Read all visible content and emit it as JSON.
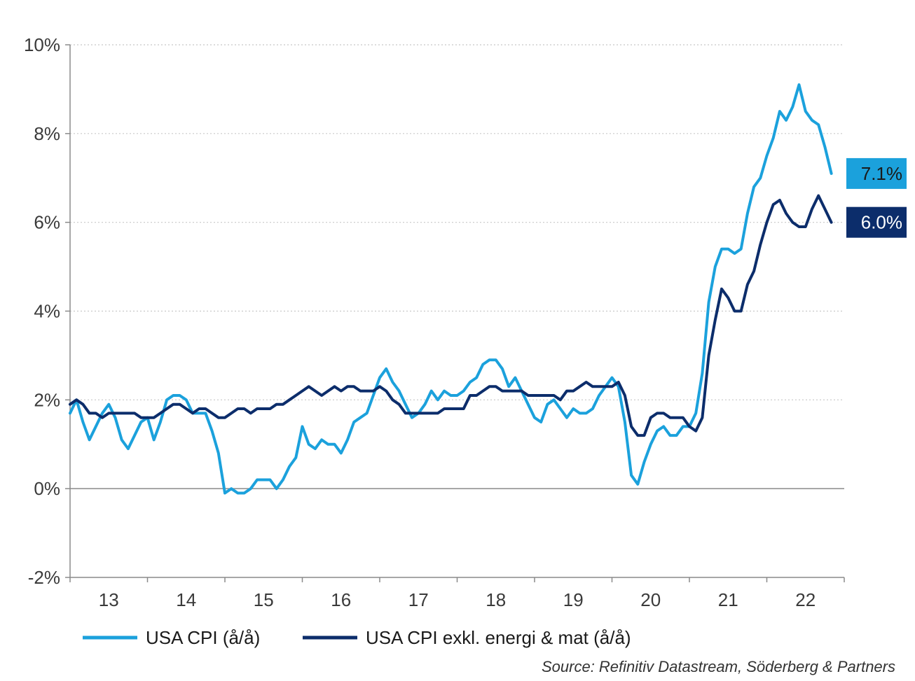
{
  "chart_data": {
    "type": "line",
    "title": "",
    "xlabel": "",
    "ylabel": "",
    "ylim": [
      -2,
      10
    ],
    "yticks": [
      -2,
      0,
      2,
      4,
      6,
      8,
      10
    ],
    "ytick_labels": [
      "-2%",
      "0%",
      "2%",
      "4%",
      "6%",
      "8%",
      "10%"
    ],
    "x_start_year": 2012.5,
    "x_end_year": 2022.5,
    "xtick_labels": [
      "13",
      "14",
      "15",
      "16",
      "17",
      "18",
      "19",
      "20",
      "21",
      "22"
    ],
    "grid": "horizontal dotted",
    "legend_position": "bottom",
    "series": [
      {
        "name": "USA CPI (å/å)",
        "color": "#1ba1dc",
        "end_label": "7.1%",
        "x_start": "2012-07",
        "values": [
          1.7,
          2.0,
          1.5,
          1.1,
          1.4,
          1.7,
          1.9,
          1.6,
          1.1,
          0.9,
          1.2,
          1.5,
          1.6,
          1.1,
          1.5,
          2.0,
          2.1,
          2.1,
          2.0,
          1.7,
          1.7,
          1.7,
          1.3,
          0.8,
          -0.1,
          0.0,
          -0.1,
          -0.1,
          0.0,
          0.2,
          0.2,
          0.2,
          0.0,
          0.2,
          0.5,
          0.7,
          1.4,
          1.0,
          0.9,
          1.1,
          1.0,
          1.0,
          0.8,
          1.1,
          1.5,
          1.6,
          1.7,
          2.1,
          2.5,
          2.7,
          2.4,
          2.2,
          1.9,
          1.6,
          1.7,
          1.9,
          2.2,
          2.0,
          2.2,
          2.1,
          2.1,
          2.2,
          2.4,
          2.5,
          2.8,
          2.9,
          2.9,
          2.7,
          2.3,
          2.5,
          2.2,
          1.9,
          1.6,
          1.5,
          1.9,
          2.0,
          1.8,
          1.6,
          1.8,
          1.7,
          1.7,
          1.8,
          2.1,
          2.3,
          2.5,
          2.3,
          1.5,
          0.3,
          0.1,
          0.6,
          1.0,
          1.3,
          1.4,
          1.2,
          1.2,
          1.4,
          1.4,
          1.7,
          2.6,
          4.2,
          5.0,
          5.4,
          5.4,
          5.3,
          5.4,
          6.2,
          6.8,
          7.0,
          7.5,
          7.9,
          8.5,
          8.3,
          8.6,
          9.1,
          8.5,
          8.3,
          8.2,
          7.7,
          7.1
        ]
      },
      {
        "name": "USA CPI exkl. energi & mat (å/å)",
        "color": "#0c2d6b",
        "end_label": "6.0%",
        "x_start": "2012-07",
        "values": [
          1.9,
          2.0,
          1.9,
          1.7,
          1.7,
          1.6,
          1.7,
          1.7,
          1.7,
          1.7,
          1.7,
          1.6,
          1.6,
          1.6,
          1.7,
          1.8,
          1.9,
          1.9,
          1.8,
          1.7,
          1.8,
          1.8,
          1.7,
          1.6,
          1.6,
          1.7,
          1.8,
          1.8,
          1.7,
          1.8,
          1.8,
          1.8,
          1.9,
          1.9,
          2.0,
          2.1,
          2.2,
          2.3,
          2.2,
          2.1,
          2.2,
          2.3,
          2.2,
          2.3,
          2.3,
          2.2,
          2.2,
          2.2,
          2.3,
          2.2,
          2.0,
          1.9,
          1.7,
          1.7,
          1.7,
          1.7,
          1.7,
          1.7,
          1.8,
          1.8,
          1.8,
          1.8,
          2.1,
          2.1,
          2.2,
          2.3,
          2.3,
          2.2,
          2.2,
          2.2,
          2.2,
          2.1,
          2.1,
          2.1,
          2.1,
          2.1,
          2.0,
          2.2,
          2.2,
          2.3,
          2.4,
          2.3,
          2.3,
          2.3,
          2.3,
          2.4,
          2.1,
          1.4,
          1.2,
          1.2,
          1.6,
          1.7,
          1.7,
          1.6,
          1.6,
          1.6,
          1.4,
          1.3,
          1.6,
          3.0,
          3.8,
          4.5,
          4.3,
          4.0,
          4.0,
          4.6,
          4.9,
          5.5,
          6.0,
          6.4,
          6.5,
          6.2,
          6.0,
          5.9,
          5.9,
          6.3,
          6.6,
          6.3,
          6.0
        ]
      }
    ],
    "source": "Source: Refinitiv Datastream, Söderberg & Partners"
  }
}
